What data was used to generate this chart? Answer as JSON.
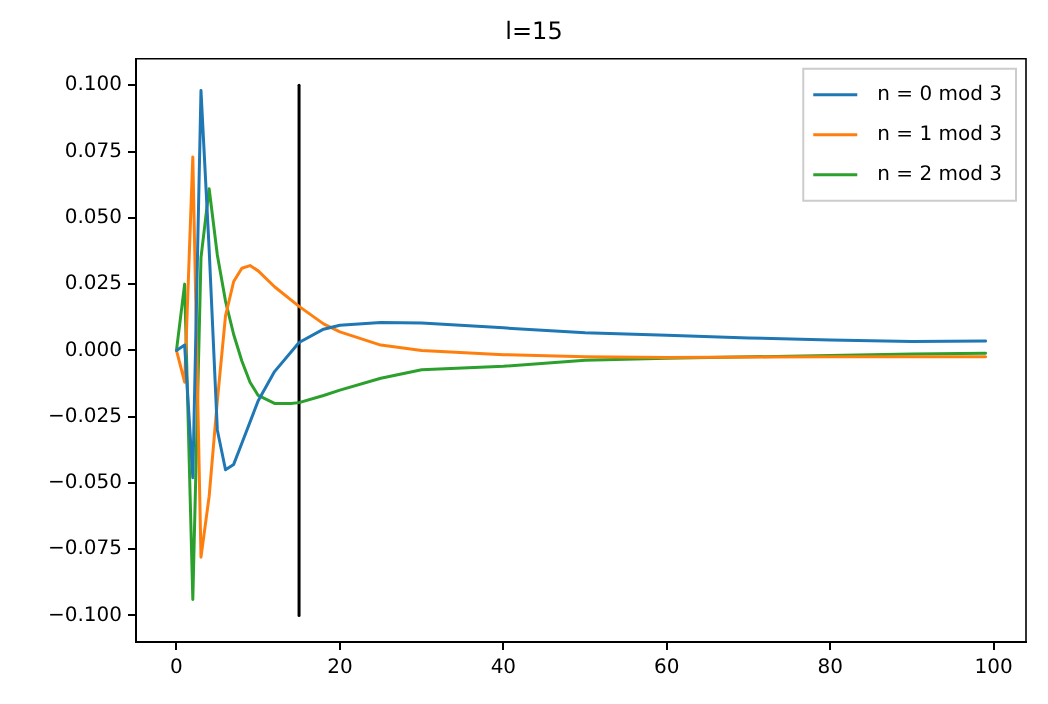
{
  "chart_data": {
    "type": "line",
    "title": "l=15",
    "xlim": [
      -4.95,
      103.95
    ],
    "xticks": [
      0,
      20,
      40,
      60,
      80,
      100
    ],
    "ylim": [
      -0.11,
      0.11
    ],
    "yticks": [
      {
        "value": -0.1,
        "label": "−0.100"
      },
      {
        "value": -0.075,
        "label": "−0.075"
      },
      {
        "value": -0.05,
        "label": "−0.050"
      },
      {
        "value": -0.025,
        "label": "−0.025"
      },
      {
        "value": 0,
        "label": "0.000"
      },
      {
        "value": 0.025,
        "label": "0.025"
      },
      {
        "value": 0.05,
        "label": "0.050"
      },
      {
        "value": 0.075,
        "label": "0.075"
      },
      {
        "value": 0.1,
        "label": "0.100"
      }
    ],
    "grid": false,
    "legend": "top right",
    "marker": "none",
    "line_style": "solid",
    "series": [
      {
        "name": "n = 0 mod 3",
        "color": "#1f77b4",
        "x": [
          0,
          1,
          2,
          3,
          4,
          5,
          6,
          7,
          8,
          10,
          12,
          15,
          18,
          20,
          25,
          30,
          40,
          50,
          60,
          70,
          80,
          90,
          99
        ],
        "values": [
          0,
          0.002,
          -0.048,
          0.098,
          0.038,
          -0.03,
          -0.045,
          -0.043,
          -0.035,
          -0.019,
          -0.008,
          0.003,
          0.008,
          0.0095,
          0.0105,
          0.0103,
          0.0085,
          0.0067,
          0.0057,
          0.0047,
          0.0039,
          0.0034,
          0.0035
        ]
      },
      {
        "name": "n = 1 mod 3",
        "color": "#ff7f0e",
        "x": [
          0,
          1,
          2,
          3,
          4,
          5,
          6,
          7,
          8,
          9,
          10,
          12,
          15,
          18,
          20,
          25,
          30,
          40,
          50,
          60,
          80,
          99
        ],
        "values": [
          0,
          -0.012,
          0.073,
          -0.078,
          -0.055,
          -0.019,
          0.013,
          0.026,
          0.031,
          0.032,
          0.03,
          0.024,
          0.0166,
          0.01,
          0.007,
          0.002,
          0,
          -0.0016,
          -0.0024,
          -0.0027,
          -0.0024,
          -0.0024
        ]
      },
      {
        "name": "n = 2 mod 3",
        "color": "#2ca02c",
        "x": [
          0,
          1,
          2,
          3,
          4,
          5,
          6,
          7,
          8,
          9,
          10,
          12,
          14,
          15,
          18,
          20,
          25,
          30,
          40,
          50,
          60,
          80,
          90,
          99
        ],
        "values": [
          0,
          0.025,
          -0.094,
          0.035,
          0.061,
          0.036,
          0.0186,
          0.006,
          -0.004,
          -0.012,
          -0.017,
          -0.02,
          -0.02,
          -0.0197,
          -0.017,
          -0.015,
          -0.0105,
          -0.0073,
          -0.006,
          -0.0037,
          -0.003,
          -0.0019,
          -0.0014,
          -0.0011
        ]
      },
      {
        "color": "#000000",
        "x": [
          15,
          15
        ],
        "values": [
          -0.1,
          0.1
        ]
      }
    ]
  }
}
